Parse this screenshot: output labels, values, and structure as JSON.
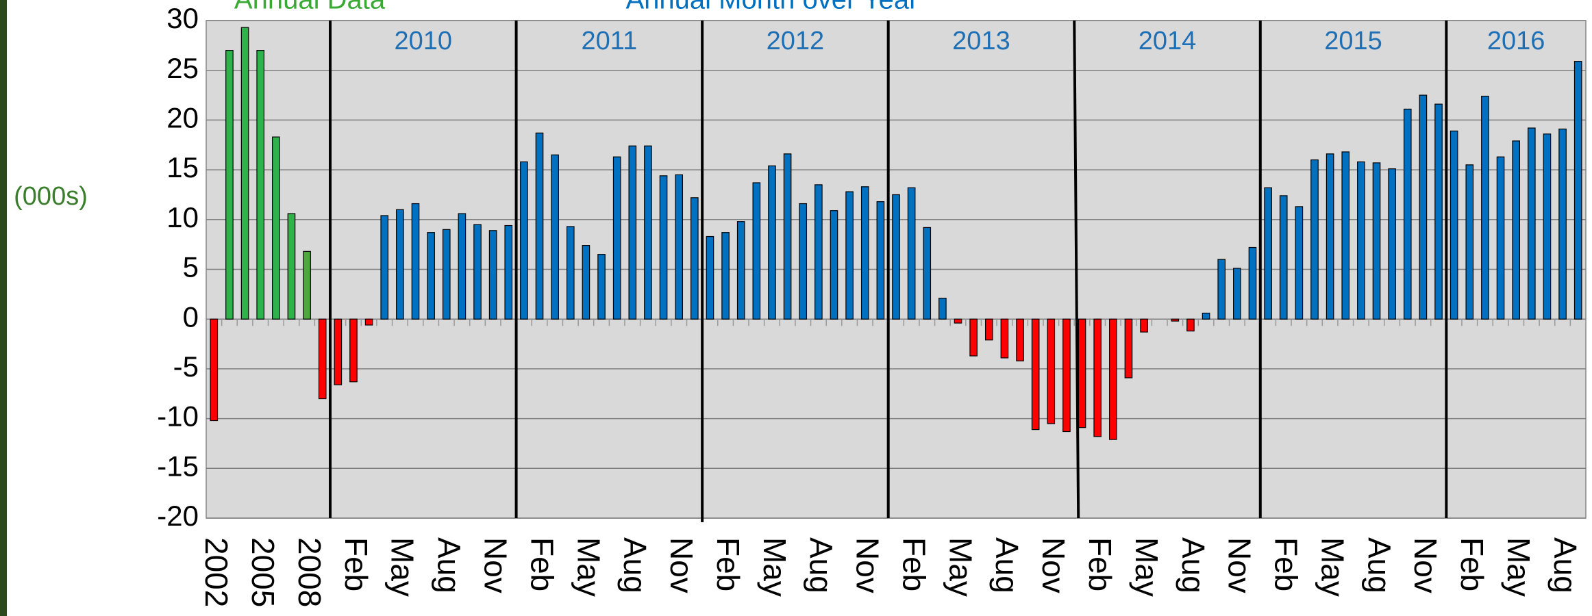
{
  "chart_data": {
    "type": "bar",
    "titles": [
      "Annual Data",
      "Annual Month over Year"
    ],
    "ylabel": "(000s)",
    "categories": [
      "2002",
      null,
      null,
      "2005",
      null,
      null,
      "2008",
      null,
      null,
      "Feb",
      null,
      null,
      "May",
      null,
      null,
      "Aug",
      null,
      null,
      "Nov",
      null,
      null,
      "Feb",
      null,
      null,
      "May",
      null,
      null,
      "Aug",
      null,
      null,
      "Nov",
      null,
      null,
      "Feb",
      null,
      null,
      "May",
      null,
      null,
      "Aug",
      null,
      null,
      "Nov",
      null,
      null,
      "Feb",
      null,
      null,
      "May",
      null,
      null,
      "Aug",
      null,
      null,
      "Nov",
      null,
      null,
      "Feb",
      null,
      null,
      "May",
      null,
      null,
      "Aug",
      null,
      null,
      "Nov",
      null,
      null,
      "Feb",
      null,
      null,
      "May",
      null,
      null,
      "Aug",
      null,
      null,
      "Nov",
      null,
      null,
      "Feb",
      null,
      null,
      "May",
      null,
      null,
      "Aug",
      null
    ],
    "values": [
      -10.2,
      27,
      29.3,
      27,
      18.3,
      10.6,
      6.8,
      -8,
      -6.6,
      -6.3,
      -0.6,
      10.4,
      11,
      11.6,
      8.7,
      9,
      10.6,
      9.5,
      8.9,
      9.4,
      15.8,
      18.7,
      16.5,
      9.3,
      7.4,
      6.5,
      16.3,
      17.4,
      17.4,
      14.4,
      14.5,
      12.2,
      8.3,
      8.7,
      9.8,
      13.7,
      15.4,
      16.6,
      11.6,
      13.5,
      10.9,
      12.8,
      13.3,
      11.8,
      12.5,
      13.2,
      9.2,
      2.1,
      -0.4,
      -3.7,
      -2.1,
      -3.9,
      -4.2,
      -11.1,
      -10.5,
      -11.3,
      -10.9,
      -11.8,
      -12.1,
      -5.9,
      -1.3,
      0,
      -0.2,
      -1.2,
      0.6,
      6,
      5.1,
      7.2,
      13.2,
      12.4,
      11.3,
      16,
      16.6,
      16.8,
      15.8,
      15.7,
      15.1,
      21.1,
      22.5,
      21.6,
      18.9,
      15.5,
      22.4,
      16.3,
      17.9,
      19.2,
      18.6,
      19.1,
      25.9
    ],
    "colors": [
      "#ff0000",
      "#2eb24c",
      "#2eb24c",
      "#2eb24c",
      "#2eb24c",
      "#2eb24c",
      "#4fa83c",
      "#ff0000",
      "#ff0000",
      "#ff0000",
      "#ff0000",
      "#0070c0",
      "#0070c0",
      "#0070c0",
      "#0070c0",
      "#0070c0",
      "#0070c0",
      "#0070c0",
      "#0070c0",
      "#0070c0",
      "#0070c0",
      "#0070c0",
      "#0070c0",
      "#0070c0",
      "#0070c0",
      "#0070c0",
      "#0070c0",
      "#0070c0",
      "#0070c0",
      "#0070c0",
      "#0070c0",
      "#0070c0",
      "#0070c0",
      "#0070c0",
      "#0070c0",
      "#0070c0",
      "#0070c0",
      "#0070c0",
      "#0070c0",
      "#0070c0",
      "#0070c0",
      "#0070c0",
      "#0070c0",
      "#0070c0",
      "#0070c0",
      "#0070c0",
      "#0070c0",
      "#0070c0",
      "#ff0000",
      "#ff0000",
      "#ff0000",
      "#ff0000",
      "#ff0000",
      "#ff0000",
      "#ff0000",
      "#ff0000",
      "#ff0000",
      "#ff0000",
      "#ff0000",
      "#ff0000",
      "#ff0000",
      "#0070c0",
      "#ff0000",
      "#ff0000",
      "#0070c0",
      "#0070c0",
      "#0070c0",
      "#0070c0",
      "#0070c0",
      "#0070c0",
      "#0070c0",
      "#0070c0",
      "#0070c0",
      "#0070c0",
      "#0070c0",
      "#0070c0",
      "#0070c0",
      "#0070c0",
      "#0070c0",
      "#0070c0",
      "#0070c0",
      "#0070c0",
      "#0070c0",
      "#0070c0",
      "#0070c0",
      "#0070c0",
      "#0070c0",
      "#0070c0",
      "#0070c0"
    ],
    "year_labels": [
      "2010",
      "2011",
      "2012",
      "2013",
      "2014",
      "2015",
      "2016"
    ],
    "ylim": [
      -20,
      30
    ],
    "yticks": [
      -20,
      -15,
      -10,
      -5,
      0,
      5,
      10,
      15,
      20,
      25,
      30
    ],
    "grid": true
  }
}
